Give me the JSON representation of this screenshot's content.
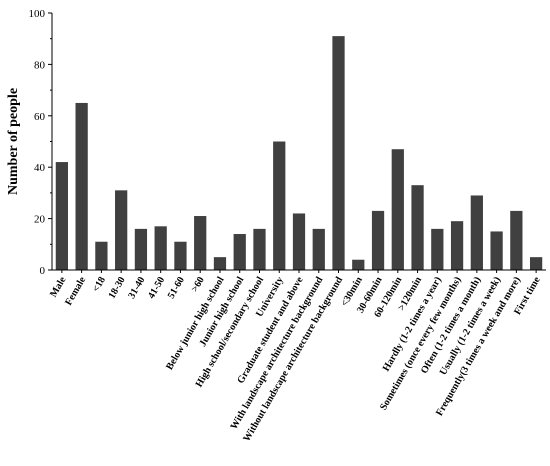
{
  "chart_data": {
    "type": "bar",
    "title": "",
    "xlabel": "",
    "ylabel": "Number of people",
    "ylim": [
      0,
      100
    ],
    "yticks": [
      0,
      20,
      40,
      60,
      80,
      100
    ],
    "grid": false,
    "bar_color": "#404040",
    "categories": [
      "Male",
      "Female",
      "<18",
      "18-30",
      "31-40",
      "41-50",
      "51-60",
      ">60",
      "Below junior high school",
      "Junior high school",
      "High school/secondary school",
      "University",
      "Graduate student and above",
      "With landscape architecture background",
      "Without landscape architecture background",
      "<30min",
      "30-60min",
      "60-120min",
      ">120min",
      "Hardly (1-2 times a year)",
      "Sometimes (once every few months)",
      "Often (1-2 times a month)",
      "Usually (1-2 times a week)",
      "Frequently(3 times a week and more)",
      "First time"
    ],
    "values": [
      42,
      65,
      11,
      31,
      16,
      17,
      11,
      21,
      5,
      14,
      16,
      50,
      22,
      16,
      91,
      4,
      23,
      47,
      33,
      16,
      19,
      29,
      15,
      23,
      5
    ]
  }
}
